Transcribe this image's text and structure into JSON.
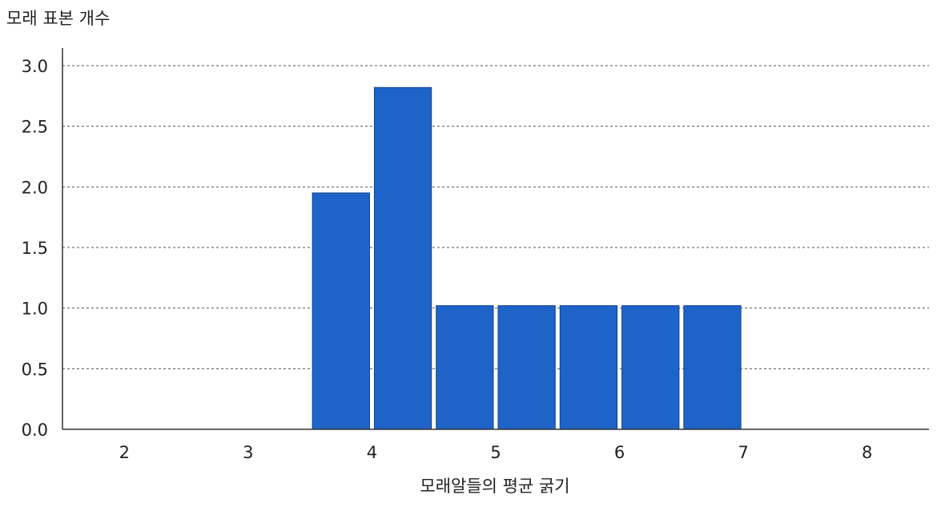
{
  "chart_data": {
    "type": "bar",
    "title": "",
    "ylabel": "모래 표본 개수",
    "xlabel": "모래알들의 평균 굵기",
    "ylim": [
      0,
      3.0
    ],
    "yticks": [
      "0.0",
      "0.5",
      "1.0",
      "1.5",
      "2.0",
      "2.5",
      "3.0"
    ],
    "xlim": [
      1.5,
      8.5
    ],
    "xticks": [
      "2",
      "3",
      "4",
      "5",
      "6",
      "7",
      "8"
    ],
    "bars": [
      {
        "x_start": 3.5,
        "x_end": 4.0,
        "value": 1.95
      },
      {
        "x_start": 4.0,
        "x_end": 4.5,
        "value": 2.82
      },
      {
        "x_start": 4.5,
        "x_end": 5.0,
        "value": 1.02
      },
      {
        "x_start": 5.0,
        "x_end": 5.5,
        "value": 1.02
      },
      {
        "x_start": 5.5,
        "x_end": 6.0,
        "value": 1.02
      },
      {
        "x_start": 6.0,
        "x_end": 6.5,
        "value": 1.02
      },
      {
        "x_start": 6.5,
        "x_end": 7.0,
        "value": 1.02
      }
    ],
    "bar_color": "#1e64c8",
    "grid": "horizontal-dashed",
    "legend": "none"
  }
}
